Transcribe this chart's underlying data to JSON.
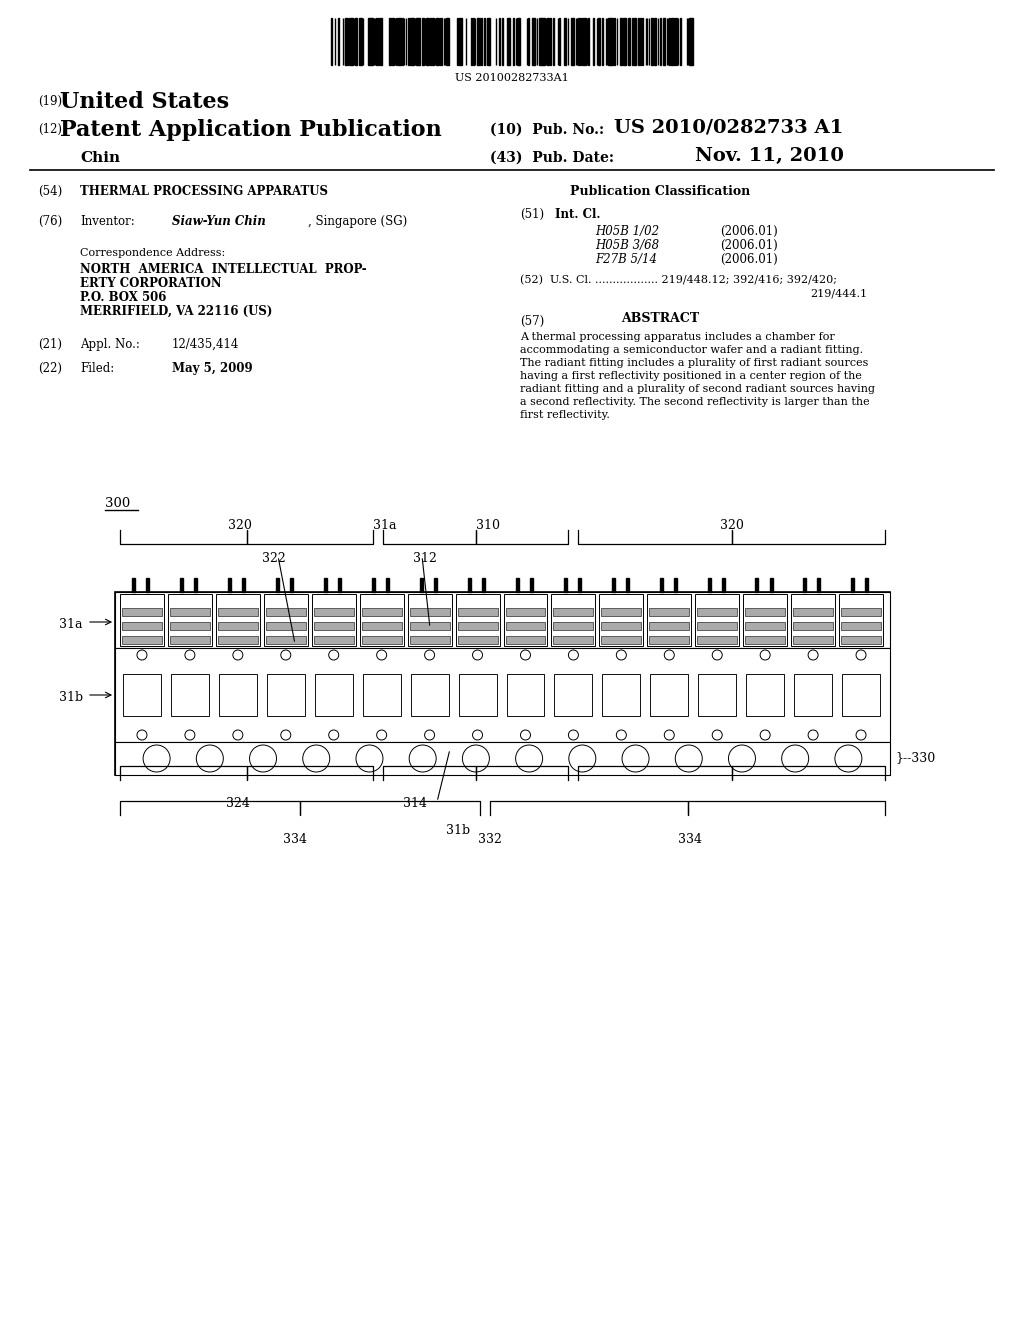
{
  "bg_color": "#ffffff",
  "barcode_number": "US 20100282733A1",
  "header19": "(19)",
  "header19_text": "United States",
  "header12": "(12)",
  "header12_text": "Patent Application Publication",
  "inventor_name": "Chin",
  "pub_no_num": "(10)  Pub. No.:",
  "pub_no_val": "US 2010/0282733 A1",
  "pub_date_num": "(43)  Pub. Date:",
  "pub_date_val": "Nov. 11, 2010",
  "s54_num": "(54)",
  "s54_text": "THERMAL PROCESSING APPARATUS",
  "s76_num": "(76)",
  "s76_label": "Inventor:",
  "s76_name": "Siaw-Yun Chin",
  "s76_country": ", Singapore (SG)",
  "corr_label": "Correspondence Address:",
  "corr1": "NORTH  AMERICA  INTELLECTUAL  PROP-",
  "corr2": "ERTY CORPORATION",
  "corr3": "P.O. BOX 506",
  "corr4": "MERRIFIELD, VA 22116 (US)",
  "s21_num": "(21)",
  "s21_label": "Appl. No.:",
  "s21_val": "12/435,414",
  "s22_num": "(22)",
  "s22_label": "Filed:",
  "s22_val": "May 5, 2009",
  "pub_class": "Publication Classification",
  "s51_num": "(51)",
  "s51_label": "Int. Cl.",
  "int_cl": [
    [
      "H05B 1/02",
      "(2006.01)"
    ],
    [
      "H05B 3/68",
      "(2006.01)"
    ],
    [
      "F27B 5/14",
      "(2006.01)"
    ]
  ],
  "s52_text": "(52)  U.S. Cl. .................. 219/448.12; 392/416; 392/420;",
  "s52_cont": "219/444.1",
  "s57_num": "(57)",
  "s57_title": "ABSTRACT",
  "abstract_lines": [
    "A thermal processing apparatus includes a chamber for",
    "accommodating a semiconductor wafer and a radiant fitting.",
    "The radiant fitting includes a plurality of first radiant sources",
    "having a first reflectivity positioned in a center region of the",
    "radiant fitting and a plurality of second radiant sources having",
    "a second reflectivity. The second reflectivity is larger than the",
    "first reflectivity."
  ]
}
